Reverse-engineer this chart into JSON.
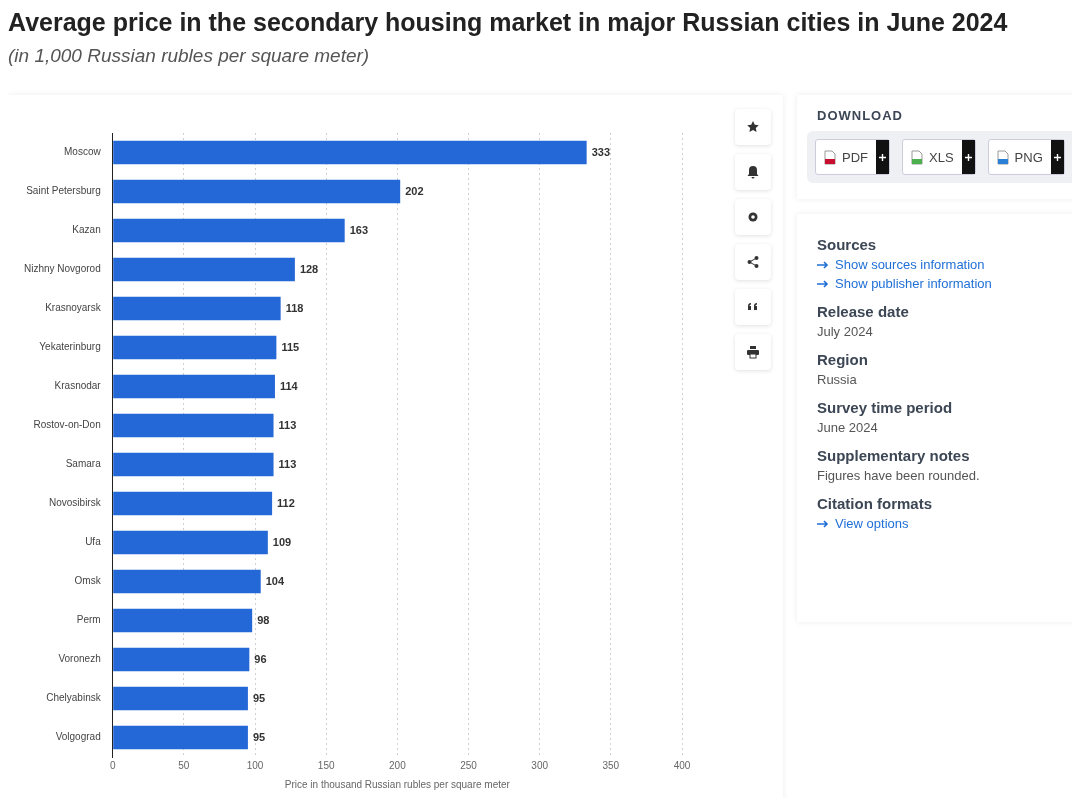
{
  "chart_data": {
    "type": "bar",
    "orientation": "horizontal",
    "title": "Average price in the secondary housing market in major Russian cities in June 2024",
    "subtitle": "(in 1,000 Russian rubles per square meter)",
    "xlabel": "Price in thousand Russian rubles per square meter",
    "categories": [
      "Moscow",
      "Saint Petersburg",
      "Kazan",
      "Nizhny Novgorod",
      "Krasnoyarsk",
      "Yekaterinburg",
      "Krasnodar",
      "Rostov-on-Don",
      "Samara",
      "Novosibirsk",
      "Ufa",
      "Omsk",
      "Perm",
      "Voronezh",
      "Chelyabinsk",
      "Volgograd"
    ],
    "values": [
      333,
      202,
      163,
      128,
      118,
      115,
      114,
      113,
      113,
      112,
      109,
      104,
      98,
      96,
      95,
      95
    ],
    "color": "#2467d6",
    "xlim": [
      0,
      400
    ],
    "xticks": [
      0,
      50,
      100,
      150,
      200,
      250,
      300,
      350,
      400
    ],
    "grid": "x",
    "data_labels": true,
    "legend": false,
    "annotations": [
      "DOWNLOAD",
      "PDF",
      "XLS",
      "PNG",
      "Sources",
      "Show sources information",
      "Show publisher information",
      "Release date",
      "July 2024",
      "Region",
      "Russia",
      "Survey time period",
      "June 2024",
      "Supplementary notes",
      "Figures have been rounded.",
      "Citation formats",
      "View options"
    ]
  }
}
